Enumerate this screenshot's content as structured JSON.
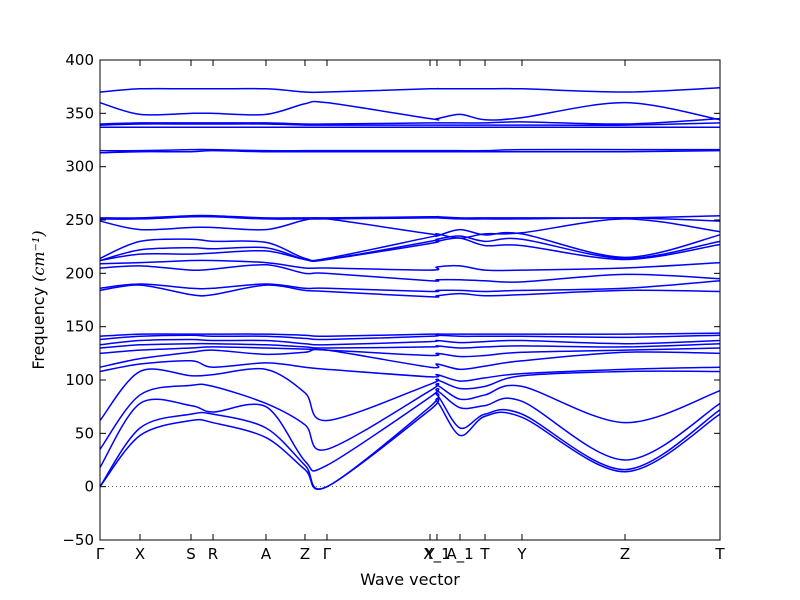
{
  "chart_data": {
    "type": "line",
    "title": "",
    "xlabel": "Wave vector",
    "ylabel": "Frequency ",
    "ylabel_unit": "(cm⁻¹)",
    "ylim": [
      -50,
      400
    ],
    "y_ticks": [
      -50,
      0,
      50,
      100,
      150,
      200,
      250,
      300,
      350,
      400
    ],
    "x_ticks": [
      {
        "label": "Γ",
        "x": 0.0
      },
      {
        "label": "X",
        "x": 0.0645
      },
      {
        "label": "S",
        "x": 0.1468
      },
      {
        "label": "R",
        "x": 0.1823
      },
      {
        "label": "A",
        "x": 0.2677
      },
      {
        "label": "Z",
        "x": 0.3306
      },
      {
        "label": "Γ",
        "x": 0.3661
      },
      {
        "label": "Y",
        "x": 0.5323
      },
      {
        "label": "X_1",
        "x": 0.5435
      },
      {
        "label": "A_1",
        "x": 0.5806
      },
      {
        "label": "T",
        "x": 0.621
      },
      {
        "label": "Y",
        "x": 0.6806
      },
      {
        "label": "Z",
        "x": 0.8468
      },
      {
        "label": "T",
        "x": 1.0
      }
    ],
    "zero_line": true,
    "line_color": "#0000ff",
    "series": [
      {
        "x": [
          0.0,
          0.0645,
          0.1468,
          0.1823,
          0.2677,
          0.3306,
          0.3661,
          0.5323,
          0.5435,
          0.5806,
          0.621,
          0.6806,
          0.8468,
          1.0
        ],
        "y": [
          0,
          48,
          62,
          60,
          46,
          16,
          0,
          72,
          80,
          48,
          66,
          65,
          14,
          68
        ]
      },
      {
        "x": [
          0.0,
          0.0645,
          0.1468,
          0.1823,
          0.2677,
          0.3306,
          0.3661,
          0.5323,
          0.5435,
          0.5806,
          0.621,
          0.6806,
          0.8468,
          1.0
        ],
        "y": [
          0,
          55,
          68,
          68,
          55,
          20,
          0,
          75,
          86,
          55,
          68,
          68,
          16,
          72
        ]
      },
      {
        "x": [
          0.0,
          0.0645,
          0.1468,
          0.1823,
          0.2677,
          0.3306,
          0.3661,
          0.5323,
          0.5435,
          0.5806,
          0.621,
          0.6806,
          0.8468,
          1.0
        ],
        "y": [
          18,
          78,
          76,
          70,
          75,
          24,
          20,
          84,
          90,
          74,
          76,
          80,
          25,
          78
        ]
      },
      {
        "x": [
          0.0,
          0.0645,
          0.1468,
          0.1823,
          0.2677,
          0.3306,
          0.3661,
          0.5323,
          0.5435,
          0.5806,
          0.621,
          0.6806,
          0.8468,
          1.0
        ],
        "y": [
          35,
          86,
          95,
          94,
          78,
          58,
          35,
          90,
          95,
          82,
          86,
          94,
          60,
          90
        ]
      },
      {
        "x": [
          0.0,
          0.0645,
          0.1468,
          0.1823,
          0.2677,
          0.3306,
          0.3661,
          0.5323,
          0.5435,
          0.5806,
          0.621,
          0.6806,
          0.8468,
          1.0
        ],
        "y": [
          62,
          108,
          104,
          105,
          110,
          88,
          62,
          96,
          100,
          92,
          94,
          104,
          108,
          108
        ]
      },
      {
        "x": [
          0.0,
          0.0645,
          0.1468,
          0.1823,
          0.2677,
          0.3306,
          0.3661,
          0.5323,
          0.5435,
          0.5806,
          0.621,
          0.6806,
          0.8468,
          1.0
        ],
        "y": [
          108,
          115,
          118,
          112,
          116,
          112,
          110,
          103,
          105,
          99,
          102,
          106,
          110,
          112
        ]
      },
      {
        "x": [
          0.0,
          0.0645,
          0.1468,
          0.1823,
          0.2677,
          0.3306,
          0.3661,
          0.5323,
          0.5435,
          0.5806,
          0.621,
          0.6806,
          0.8468,
          1.0
        ],
        "y": [
          112,
          120,
          126,
          128,
          124,
          126,
          128,
          112,
          115,
          110,
          113,
          118,
          126,
          125
        ]
      },
      {
        "x": [
          0.0,
          0.0645,
          0.1468,
          0.1823,
          0.2677,
          0.3306,
          0.3661,
          0.5323,
          0.5435,
          0.5806,
          0.621,
          0.6806,
          0.8468,
          1.0
        ],
        "y": [
          125,
          128,
          130,
          131,
          130,
          129,
          128,
          123,
          125,
          122,
          123,
          126,
          128,
          130
        ]
      },
      {
        "x": [
          0.0,
          0.0645,
          0.1468,
          0.1823,
          0.2677,
          0.3306,
          0.3661,
          0.5323,
          0.5435,
          0.5806,
          0.621,
          0.6806,
          0.8468,
          1.0
        ],
        "y": [
          130,
          133,
          134,
          134,
          133,
          131,
          130,
          131,
          132,
          130,
          131,
          132,
          131,
          134
        ]
      },
      {
        "x": [
          0.0,
          0.0645,
          0.1468,
          0.1823,
          0.2677,
          0.3306,
          0.3661,
          0.5323,
          0.5435,
          0.5806,
          0.621,
          0.6806,
          0.8468,
          1.0
        ],
        "y": [
          133,
          137,
          138,
          137,
          137,
          134,
          133,
          136,
          137,
          135,
          136,
          137,
          134,
          137
        ]
      },
      {
        "x": [
          0.0,
          0.0645,
          0.1468,
          0.1823,
          0.2677,
          0.3306,
          0.3661,
          0.5323,
          0.5435,
          0.5806,
          0.621,
          0.6806,
          0.8468,
          1.0
        ],
        "y": [
          138,
          141,
          142,
          141,
          141,
          139,
          138,
          141,
          142,
          141,
          141,
          141,
          140,
          142
        ]
      },
      {
        "x": [
          0.0,
          0.0645,
          0.1468,
          0.1823,
          0.2677,
          0.3306,
          0.3661,
          0.5323,
          0.5435,
          0.5806,
          0.621,
          0.6806,
          0.8468,
          1.0
        ],
        "y": [
          141,
          143,
          143,
          143,
          143,
          142,
          141,
          143,
          143,
          143,
          143,
          143,
          143,
          144
        ]
      },
      {
        "x": [
          0.0,
          0.0645,
          0.1468,
          0.1823,
          0.2677,
          0.3306,
          0.3661,
          0.5323,
          0.5435,
          0.5806,
          0.621,
          0.6806,
          0.8468,
          1.0
        ],
        "y": [
          184,
          189,
          180,
          180,
          189,
          184,
          183,
          178,
          179,
          181,
          179,
          180,
          184,
          183
        ]
      },
      {
        "x": [
          0.0,
          0.0645,
          0.1468,
          0.1823,
          0.2677,
          0.3306,
          0.3661,
          0.5323,
          0.5435,
          0.5806,
          0.621,
          0.6806,
          0.8468,
          1.0
        ],
        "y": [
          186,
          190,
          186,
          186,
          190,
          186,
          186,
          183,
          184,
          184,
          183,
          184,
          186,
          193
        ]
      },
      {
        "x": [
          0.0,
          0.0645,
          0.1468,
          0.1823,
          0.2677,
          0.3306,
          0.3661,
          0.5323,
          0.5435,
          0.5806,
          0.621,
          0.6806,
          0.8468,
          1.0
        ],
        "y": [
          205,
          207,
          203,
          204,
          208,
          200,
          200,
          193,
          194,
          194,
          193,
          192,
          199,
          195
        ]
      },
      {
        "x": [
          0.0,
          0.0645,
          0.1468,
          0.1823,
          0.2677,
          0.3306,
          0.3661,
          0.5323,
          0.5435,
          0.5806,
          0.621,
          0.6806,
          0.8468,
          1.0
        ],
        "y": [
          209,
          210,
          212,
          212,
          210,
          205,
          205,
          203,
          206,
          207,
          203,
          203,
          205,
          210
        ]
      },
      {
        "x": [
          0.0,
          0.0645,
          0.1468,
          0.1823,
          0.2677,
          0.3306,
          0.3661,
          0.5323,
          0.5435,
          0.5806,
          0.621,
          0.6806,
          0.8468,
          1.0
        ],
        "y": [
          212,
          218,
          218,
          219,
          221,
          213,
          213,
          228,
          230,
          233,
          226,
          226,
          213,
          227
        ]
      },
      {
        "x": [
          0.0,
          0.0645,
          0.1468,
          0.1823,
          0.2677,
          0.3306,
          0.3661,
          0.5323,
          0.5435,
          0.5806,
          0.621,
          0.6806,
          0.8468,
          1.0
        ],
        "y": [
          212,
          222,
          224,
          223,
          224,
          213,
          213,
          230,
          232,
          235,
          230,
          232,
          214,
          230
        ]
      },
      {
        "x": [
          0.0,
          0.0645,
          0.1468,
          0.1823,
          0.2677,
          0.3306,
          0.3661,
          0.5323,
          0.5435,
          0.5806,
          0.621,
          0.6806,
          0.8468,
          1.0
        ],
        "y": [
          214,
          230,
          232,
          230,
          229,
          214,
          214,
          234,
          235,
          241,
          236,
          237,
          215,
          236
        ]
      },
      {
        "x": [
          0.0,
          0.0645,
          0.1468,
          0.1823,
          0.2677,
          0.3306,
          0.3661,
          0.5323,
          0.5435,
          0.5806,
          0.621,
          0.6806,
          0.8468,
          1.0
        ],
        "y": [
          249,
          241,
          243,
          243,
          241,
          250,
          251,
          237,
          237,
          233,
          237,
          238,
          251,
          239
        ]
      },
      {
        "x": [
          0.0,
          0.0645,
          0.1468,
          0.1823,
          0.2677,
          0.3306,
          0.3661,
          0.5323,
          0.5435,
          0.5806,
          0.621,
          0.6806,
          0.8468,
          1.0
        ],
        "y": [
          251,
          251,
          253,
          253,
          251,
          251,
          251,
          252,
          252,
          251,
          251,
          251,
          252,
          249
        ]
      },
      {
        "x": [
          0.0,
          0.0645,
          0.1468,
          0.1823,
          0.2677,
          0.3306,
          0.3661,
          0.5323,
          0.5435,
          0.5806,
          0.621,
          0.6806,
          0.8468,
          1.0
        ],
        "y": [
          252,
          252,
          254,
          254,
          252,
          252,
          252,
          253,
          253,
          252,
          252,
          252,
          252,
          254
        ]
      },
      {
        "x": [
          0.0,
          0.0645,
          0.1468,
          0.1823,
          0.2677,
          0.3306,
          0.3661,
          0.5323,
          0.5435,
          0.5806,
          0.621,
          0.6806,
          0.8468,
          1.0
        ],
        "y": [
          313,
          314,
          314,
          315,
          314,
          314,
          314,
          314,
          314,
          314,
          314,
          314,
          314,
          315
        ]
      },
      {
        "x": [
          0.0,
          0.0645,
          0.1468,
          0.1823,
          0.2677,
          0.3306,
          0.3661,
          0.5323,
          0.5435,
          0.5806,
          0.621,
          0.6806,
          0.8468,
          1.0
        ],
        "y": [
          315,
          315,
          316,
          316,
          315,
          315,
          315,
          315,
          315,
          315,
          315,
          316,
          316,
          316
        ]
      },
      {
        "x": [
          0.0,
          0.0645,
          0.1468,
          0.1823,
          0.2677,
          0.3306,
          0.3661,
          0.5323,
          0.5435,
          0.5806,
          0.621,
          0.6806,
          0.8468,
          1.0
        ],
        "y": [
          337,
          337,
          337,
          337,
          337,
          337,
          337,
          337,
          337,
          337,
          337,
          337,
          337,
          337
        ]
      },
      {
        "x": [
          0.0,
          0.0645,
          0.1468,
          0.1823,
          0.2677,
          0.3306,
          0.3661,
          0.5323,
          0.5435,
          0.5806,
          0.621,
          0.6806,
          0.8468,
          1.0
        ],
        "y": [
          339,
          340,
          340,
          340,
          340,
          339,
          339,
          339,
          339,
          339,
          339,
          339,
          339,
          341
        ]
      },
      {
        "x": [
          0.0,
          0.0645,
          0.1468,
          0.1823,
          0.2677,
          0.3306,
          0.3661,
          0.5323,
          0.5435,
          0.5806,
          0.621,
          0.6806,
          0.8468,
          1.0
        ],
        "y": [
          340,
          341,
          341,
          341,
          341,
          340,
          340,
          341,
          341,
          341,
          341,
          342,
          340,
          345
        ]
      },
      {
        "x": [
          0.0,
          0.0645,
          0.1468,
          0.1823,
          0.2677,
          0.3306,
          0.3661,
          0.5323,
          0.5435,
          0.5806,
          0.621,
          0.6806,
          0.8468,
          1.0
        ],
        "y": [
          360,
          349,
          350,
          350,
          349,
          359,
          360,
          345,
          345,
          349,
          344,
          346,
          360,
          344
        ]
      },
      {
        "x": [
          0.0,
          0.0645,
          0.1468,
          0.1823,
          0.2677,
          0.3306,
          0.3661,
          0.5323,
          0.5435,
          0.5806,
          0.621,
          0.6806,
          0.8468,
          1.0
        ],
        "y": [
          370,
          373,
          373,
          373,
          373,
          370,
          370,
          373,
          373,
          373,
          373,
          373,
          370,
          374
        ]
      }
    ]
  }
}
